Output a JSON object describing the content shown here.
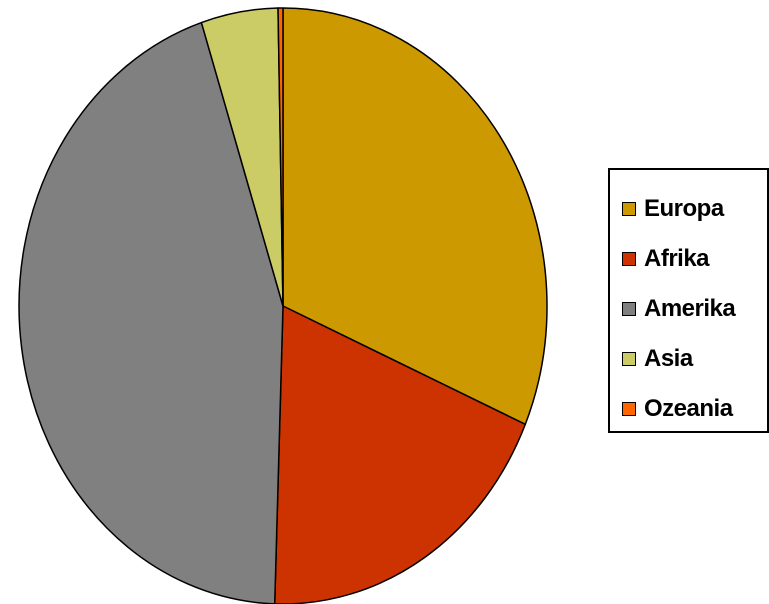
{
  "chart_data": {
    "type": "pie",
    "title": "",
    "legend_position": "right",
    "series": [
      {
        "values": [
          31.5,
          19.0,
          44.5,
          4.7,
          0.3
        ]
      }
    ],
    "slices": [
      {
        "label": "Europa",
        "value": 31.5,
        "color": "#CC9900"
      },
      {
        "label": "Afrika",
        "value": 19.0,
        "color": "#CC3300"
      },
      {
        "label": "Amerika",
        "value": 44.5,
        "color": "#808080"
      },
      {
        "label": "Asia",
        "value": 4.7,
        "color": "#CCCC66"
      },
      {
        "label": "Ozeania",
        "value": 0.3,
        "color": "#FF6600"
      }
    ]
  }
}
